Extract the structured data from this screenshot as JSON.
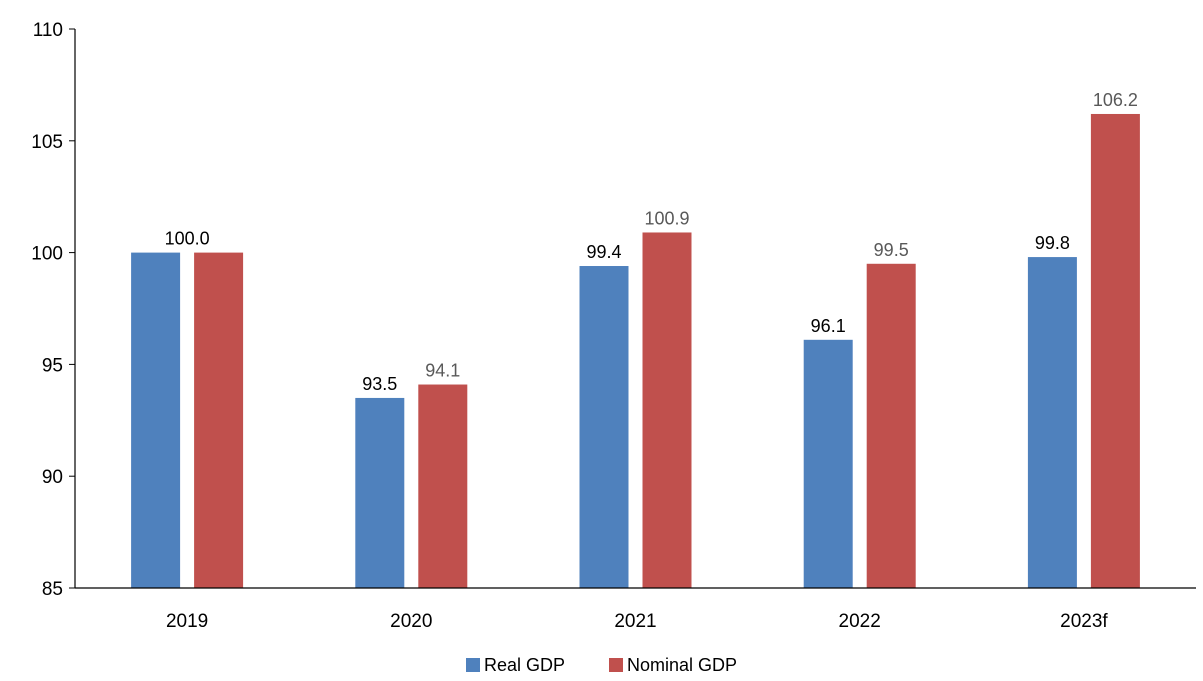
{
  "chart_data": {
    "type": "bar",
    "categories": [
      "2019",
      "2020",
      "2021",
      "2022",
      "2023f"
    ],
    "series": [
      {
        "name": "Real GDP",
        "values": [
          100.0,
          93.5,
          99.4,
          96.1,
          99.8
        ],
        "color": "#4f81bd",
        "labels": [
          "100.0",
          "93.5",
          "99.4",
          "96.1",
          "99.8"
        ],
        "label_color": "#000000"
      },
      {
        "name": "Nominal GDP",
        "values": [
          100.0,
          94.1,
          100.9,
          99.5,
          106.2
        ],
        "color": "#c0504d",
        "labels": [
          "",
          "94.1",
          "100.9",
          "99.5",
          "106.2"
        ],
        "label_color": "#595959"
      }
    ],
    "yticks": [
      "85",
      "90",
      "95",
      "100",
      "105",
      "110"
    ],
    "ylim": [
      85,
      110
    ],
    "xlabel": "",
    "ylabel": "",
    "title": "",
    "grid": false,
    "legend_position": "bottom-center"
  }
}
